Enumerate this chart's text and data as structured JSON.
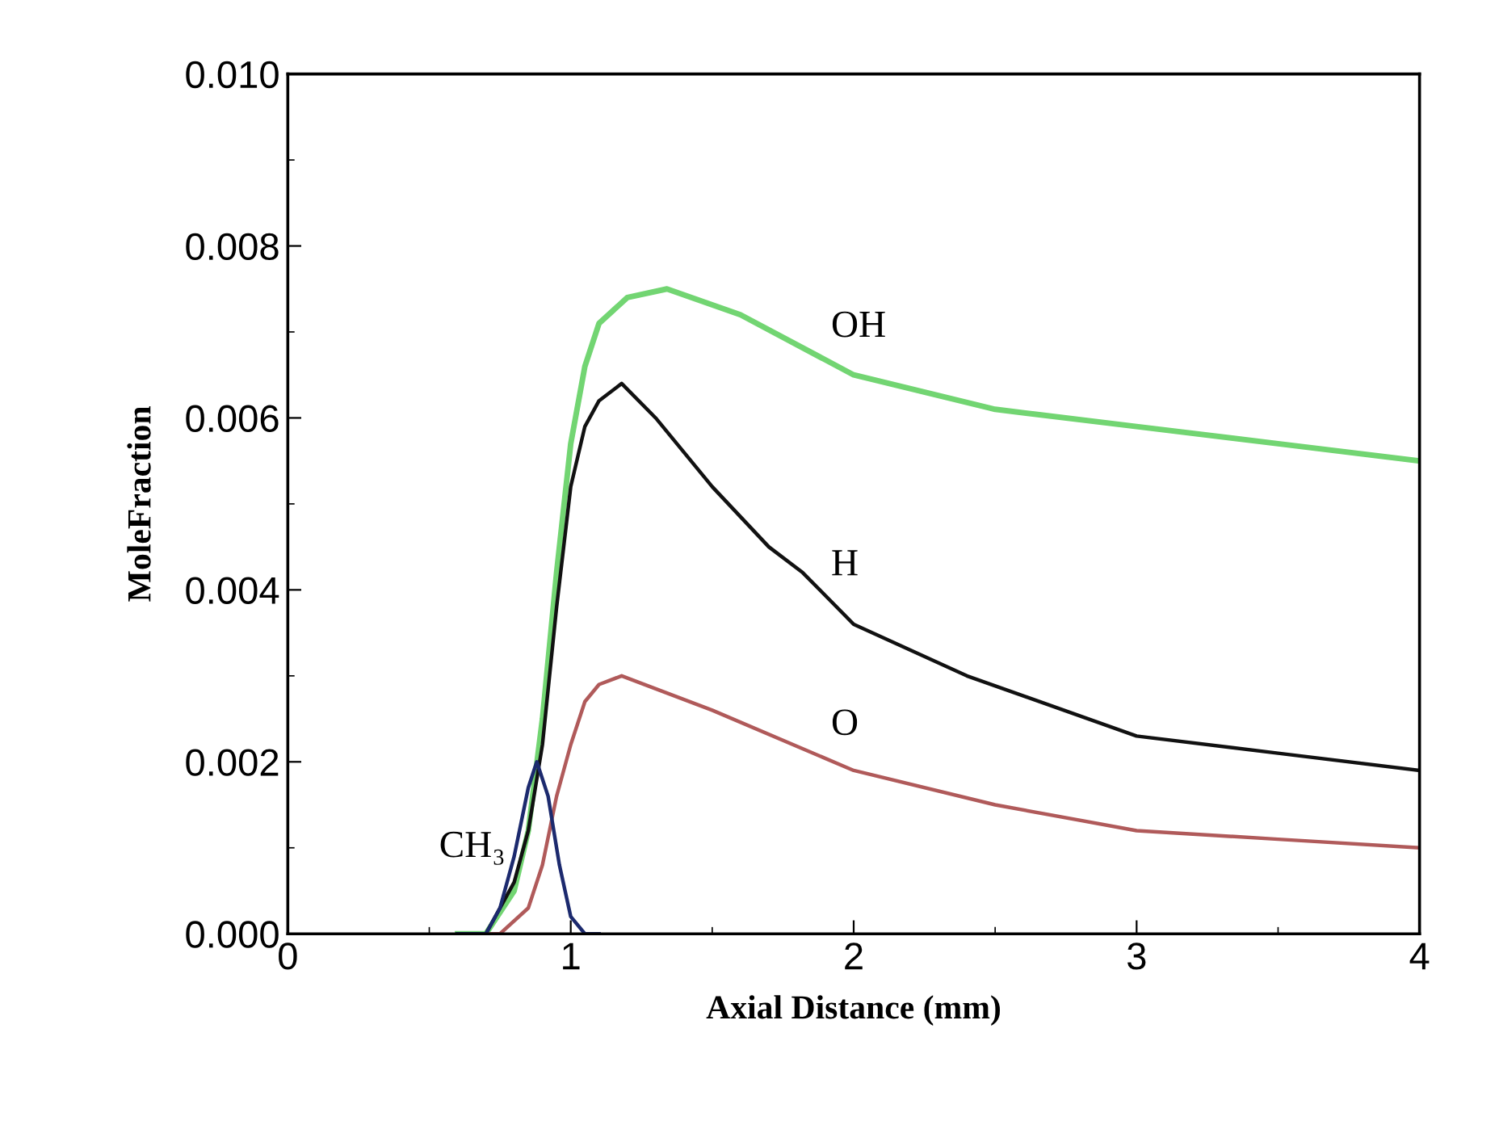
{
  "chart_data": {
    "type": "line",
    "xlabel": "Axial Distance (mm)",
    "ylabel": "MoleFraction",
    "xlim": [
      0,
      4
    ],
    "ylim": [
      0,
      0.01
    ],
    "xticks": [
      0,
      1,
      2,
      3,
      4
    ],
    "yticks": [
      {
        "value": 0,
        "label": "0.000"
      },
      {
        "value": 0.002,
        "label": "0.002"
      },
      {
        "value": 0.004,
        "label": "0.004"
      },
      {
        "value": 0.006,
        "label": "0.006"
      },
      {
        "value": 0.008,
        "label": "0.008"
      },
      {
        "value": 0.01,
        "label": "0.010"
      }
    ],
    "grid": false,
    "legend": false,
    "marker": "none",
    "line_style": "solid",
    "series": [
      {
        "name": "OH",
        "color": "#72d572",
        "x": [
          0.6,
          0.7,
          0.8,
          0.85,
          0.9,
          0.95,
          1.0,
          1.05,
          1.1,
          1.2,
          1.34,
          1.6,
          2.0,
          2.5,
          3.0,
          3.5,
          4.0
        ],
        "values": [
          0,
          0,
          0.0005,
          0.0012,
          0.0025,
          0.0042,
          0.0057,
          0.0066,
          0.0071,
          0.0074,
          0.0075,
          0.0072,
          0.0065,
          0.0061,
          0.0059,
          0.0057,
          0.0055
        ]
      },
      {
        "name": "H",
        "color": "#111111",
        "x": [
          0.6,
          0.7,
          0.8,
          0.85,
          0.9,
          0.95,
          1.0,
          1.05,
          1.1,
          1.18,
          1.3,
          1.5,
          1.7,
          1.82,
          2.0,
          2.4,
          3.0,
          3.5,
          4.0
        ],
        "values": [
          0,
          0,
          0.0006,
          0.0012,
          0.0022,
          0.0038,
          0.0052,
          0.0059,
          0.0062,
          0.0064,
          0.006,
          0.0052,
          0.0045,
          0.0042,
          0.0036,
          0.003,
          0.0023,
          0.0021,
          0.0019
        ]
      },
      {
        "name": "O",
        "color": "#b05a5a",
        "x": [
          0.65,
          0.75,
          0.85,
          0.9,
          0.95,
          1.0,
          1.05,
          1.1,
          1.18,
          1.5,
          2.0,
          2.5,
          3.0,
          3.5,
          4.0
        ],
        "values": [
          0,
          0,
          0.0003,
          0.0008,
          0.0016,
          0.0022,
          0.0027,
          0.0029,
          0.003,
          0.0026,
          0.0019,
          0.0015,
          0.0012,
          0.0011,
          0.001
        ]
      },
      {
        "name": "CH₃",
        "color": "#1c2a6e",
        "x": [
          0.6,
          0.7,
          0.75,
          0.8,
          0.85,
          0.88,
          0.92,
          0.96,
          1.0,
          1.05,
          1.1
        ],
        "values": [
          0,
          0,
          0.0003,
          0.0009,
          0.0017,
          0.002,
          0.0016,
          0.0008,
          0.0002,
          0,
          0
        ]
      }
    ]
  }
}
